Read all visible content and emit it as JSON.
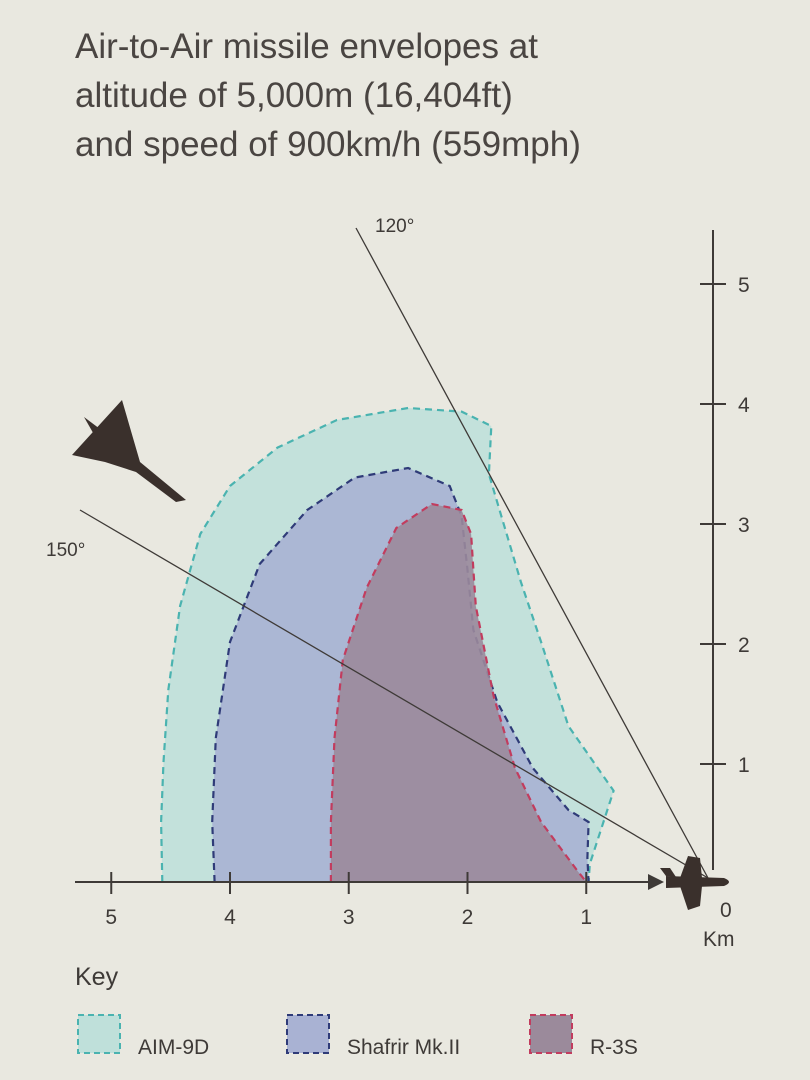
{
  "chart_data": {
    "type": "area",
    "title": [
      "Air-to-Air missile envelopes at",
      "altitude of 5,000m (16,404ft)",
      "and speed of 900km/h (559mph)"
    ],
    "x_unit": "Km",
    "x_axis": {
      "range": [
        0,
        5
      ],
      "reversed": true,
      "ticks": [
        "5",
        "4",
        "3",
        "2",
        "1"
      ],
      "origin_label": "0"
    },
    "y_axis": {
      "range": [
        0,
        5.5
      ],
      "ticks": [
        "1",
        "2",
        "3",
        "4",
        "5"
      ]
    },
    "angle_lines": [
      {
        "label": "120°",
        "angle_deg": 120
      },
      {
        "label": "150°",
        "angle_deg": 150
      }
    ],
    "legend": {
      "title": "Key",
      "placement": "bottom"
    },
    "series": [
      {
        "name": "AIM-9D",
        "fill": "#bfe0da",
        "stroke": "#4ab3b0",
        "points": [
          [
            4.57,
            0
          ],
          [
            4.58,
            0.5
          ],
          [
            4.56,
            1
          ],
          [
            4.52,
            1.6
          ],
          [
            4.42,
            2.3
          ],
          [
            4.25,
            2.9
          ],
          [
            4.0,
            3.3
          ],
          [
            3.6,
            3.62
          ],
          [
            3.1,
            3.85
          ],
          [
            2.5,
            3.95
          ],
          [
            2.05,
            3.92
          ],
          [
            1.8,
            3.8
          ],
          [
            1.82,
            3.4
          ],
          [
            1.7,
            3.0
          ],
          [
            1.55,
            2.5
          ],
          [
            1.38,
            2.0
          ],
          [
            1.15,
            1.3
          ],
          [
            0.77,
            0.76
          ],
          [
            0.97,
            0.15
          ],
          [
            0.98,
            0
          ]
        ]
      },
      {
        "name": "Shafrir Mk.II",
        "fill": "#a9b2d3",
        "stroke": "#2f3b78",
        "points": [
          [
            4.13,
            0
          ],
          [
            4.15,
            0.5
          ],
          [
            4.12,
            1.2
          ],
          [
            4.0,
            2.0
          ],
          [
            3.75,
            2.65
          ],
          [
            3.35,
            3.1
          ],
          [
            2.95,
            3.37
          ],
          [
            2.5,
            3.45
          ],
          [
            2.15,
            3.3
          ],
          [
            2.05,
            3.05
          ],
          [
            2.0,
            2.6
          ],
          [
            1.95,
            2.1
          ],
          [
            1.75,
            1.5
          ],
          [
            1.45,
            0.95
          ],
          [
            1.15,
            0.6
          ],
          [
            0.98,
            0.5
          ],
          [
            0.99,
            0.2
          ],
          [
            0.98,
            0
          ]
        ]
      },
      {
        "name": "R-3S",
        "fill": "#9b8a9b",
        "stroke": "#c23c5e",
        "points": [
          [
            3.15,
            0
          ],
          [
            3.15,
            0.5
          ],
          [
            3.12,
            1.2
          ],
          [
            3.05,
            1.85
          ],
          [
            2.85,
            2.45
          ],
          [
            2.6,
            2.95
          ],
          [
            2.3,
            3.15
          ],
          [
            2.05,
            3.1
          ],
          [
            1.97,
            2.9
          ],
          [
            1.95,
            2.6
          ],
          [
            1.93,
            2.3
          ],
          [
            1.78,
            1.55
          ],
          [
            1.6,
            0.95
          ],
          [
            1.38,
            0.5
          ],
          [
            1.08,
            0.1
          ],
          [
            1.0,
            0
          ]
        ]
      }
    ]
  },
  "icons": {
    "fighter": "delta-wing-fighter-icon",
    "target": "target-aircraft-icon"
  }
}
